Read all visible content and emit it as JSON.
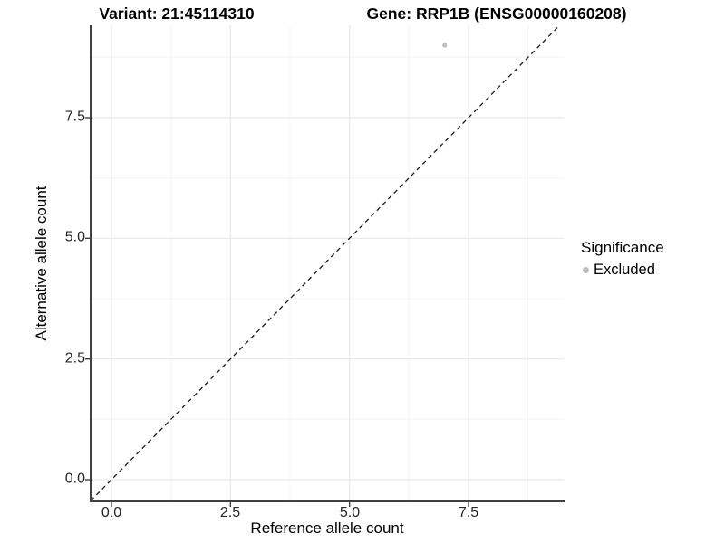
{
  "title": {
    "variant": "Variant: 21:45114310",
    "gene": "Gene: RRP1B (ENSG00000160208)"
  },
  "axes": {
    "x": {
      "label": "Reference allele count",
      "ticks": [
        "0.0",
        "2.5",
        "5.0",
        "7.5"
      ]
    },
    "y": {
      "label": "Alternative allele count",
      "ticks": [
        "0.0",
        "2.5",
        "5.0",
        "7.5"
      ]
    }
  },
  "legend": {
    "title": "Significance",
    "items": [
      {
        "label": "Excluded",
        "color": "#bebebe",
        "marker": "circle"
      }
    ]
  },
  "colors": {
    "point": "#bebebe",
    "axis_line": "#404040",
    "grid_major": "#e8e8e8",
    "grid_minor": "#f4f4f4",
    "identity_line": "#1a1a1a"
  },
  "chart_data": {
    "type": "scatter",
    "title": "Variant: 21:45114310 | Gene: RRP1B (ENSG00000160208)",
    "xlabel": "Reference allele count",
    "ylabel": "Alternative allele count",
    "x_ticks": [
      0.0,
      2.5,
      5.0,
      7.5
    ],
    "y_ticks": [
      0.0,
      2.5,
      5.0,
      7.5
    ],
    "xlim": [
      -0.44,
      9.52
    ],
    "ylim": [
      -0.45,
      9.41
    ],
    "grid": true,
    "legend_position": "right",
    "series": [
      {
        "name": "Excluded",
        "color": "#bebebe",
        "points": [
          {
            "x": 7,
            "y": 9
          }
        ]
      }
    ],
    "reference_line": {
      "style": "dashed",
      "equation": "y = x",
      "color": "#1a1a1a"
    }
  }
}
